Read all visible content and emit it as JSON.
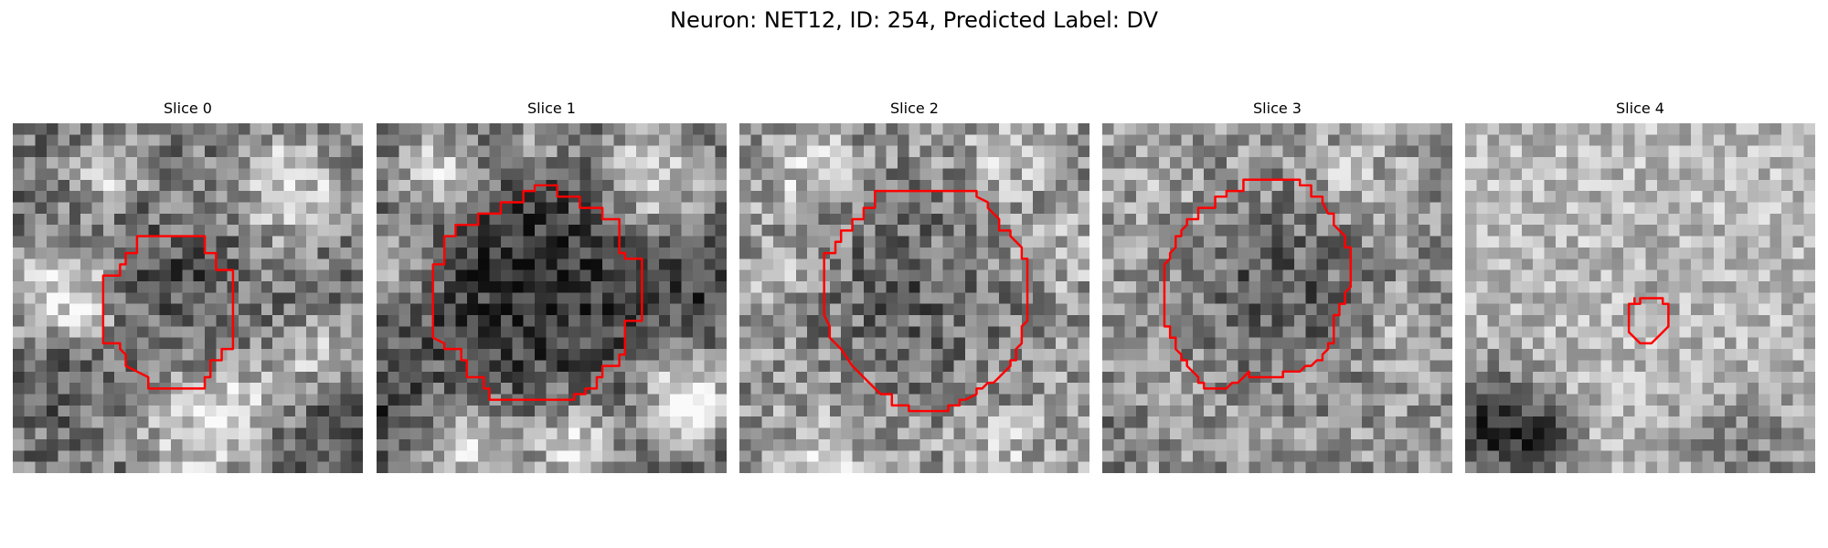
{
  "figure": {
    "title": "Neuron: NET12, ID: 254, Predicted Label: DV",
    "grid_size": 31,
    "contour_color": "#ff0000"
  },
  "panels": [
    {
      "title": "Slice 0",
      "seed": 11,
      "base": 118,
      "noise": 62,
      "blobs": [
        [
          4.5,
          15.5,
          4.5,
          110
        ],
        [
          24.5,
          5.5,
          5,
          95
        ],
        [
          8.5,
          4,
          3,
          90
        ],
        [
          16.5,
          27.5,
          5,
          100
        ],
        [
          26.5,
          20.5,
          3,
          70
        ],
        [
          20.5,
          24,
          3,
          60
        ]
      ],
      "darks": [
        [
          14.5,
          14.5,
          6,
          -35
        ],
        [
          3,
          22,
          4,
          -40
        ],
        [
          28,
          29,
          4,
          -30
        ]
      ],
      "contour": [
        [
          10,
          12.5
        ],
        [
          10,
          11.5
        ],
        [
          11,
          11.5
        ],
        [
          11,
          10
        ],
        [
          17,
          10
        ],
        [
          17,
          11.5
        ],
        [
          18,
          11.5
        ],
        [
          18,
          13
        ],
        [
          19.5,
          13
        ],
        [
          19.5,
          20
        ],
        [
          18.5,
          20
        ],
        [
          18.5,
          21
        ],
        [
          17.5,
          21
        ],
        [
          17.5,
          22.5
        ],
        [
          17,
          22.5
        ],
        [
          17,
          23.5
        ],
        [
          12,
          23.5
        ],
        [
          12,
          22.5
        ],
        [
          11,
          22
        ],
        [
          10,
          21.5
        ],
        [
          10,
          20.5
        ],
        [
          9.5,
          20
        ],
        [
          9.5,
          19.5
        ],
        [
          8,
          19.5
        ],
        [
          8,
          13.5
        ],
        [
          9.5,
          13.5
        ],
        [
          9.5,
          12.5
        ]
      ]
    },
    {
      "title": "Slice 1",
      "seed": 23,
      "base": 100,
      "noise": 55,
      "blobs": [
        [
          5.5,
          4.5,
          4,
          120
        ],
        [
          24.5,
          4.5,
          5,
          120
        ],
        [
          2,
          12.5,
          3,
          80
        ],
        [
          8,
          28.5,
          4,
          110
        ],
        [
          17.5,
          28.5,
          4,
          120
        ],
        [
          27.5,
          24.5,
          4,
          150
        ],
        [
          14.5,
          1,
          3,
          70
        ]
      ],
      "darks": [
        [
          14.5,
          14,
          10,
          -55
        ],
        [
          29,
          15,
          3,
          -30
        ],
        [
          1,
          25,
          3,
          -35
        ]
      ],
      "contour": [
        [
          8,
          9
        ],
        [
          9,
          9
        ],
        [
          9,
          8
        ],
        [
          11,
          8
        ],
        [
          11,
          7
        ],
        [
          13,
          7
        ],
        [
          13,
          6
        ],
        [
          14,
          6
        ],
        [
          14,
          5.5
        ],
        [
          16,
          5.5
        ],
        [
          16,
          6.5
        ],
        [
          18,
          6.5
        ],
        [
          18,
          7.5
        ],
        [
          20,
          7.5
        ],
        [
          20,
          8.5
        ],
        [
          21.5,
          8.5
        ],
        [
          21.5,
          11.5
        ],
        [
          22,
          11.5
        ],
        [
          22,
          12
        ],
        [
          23.5,
          12
        ],
        [
          23.5,
          17.5
        ],
        [
          22,
          17.5
        ],
        [
          22,
          20.5
        ],
        [
          21.5,
          20.5
        ],
        [
          21.5,
          21.5
        ],
        [
          20,
          21.5
        ],
        [
          20,
          22.5
        ],
        [
          19.5,
          22.5
        ],
        [
          19.5,
          23.5
        ],
        [
          18.5,
          23.5
        ],
        [
          18.5,
          24
        ],
        [
          17.5,
          24
        ],
        [
          17.5,
          24.5
        ],
        [
          10,
          24.5
        ],
        [
          10,
          23.5
        ],
        [
          9.5,
          23.5
        ],
        [
          9.5,
          22.5
        ],
        [
          8,
          22.5
        ],
        [
          8,
          21
        ],
        [
          7.5,
          21
        ],
        [
          7.5,
          20
        ],
        [
          6,
          20
        ],
        [
          6,
          19.5
        ],
        [
          5,
          19
        ],
        [
          5,
          12.5
        ],
        [
          6,
          12.5
        ],
        [
          6,
          10
        ],
        [
          7,
          10
        ],
        [
          7,
          9
        ]
      ]
    },
    {
      "title": "Slice 2",
      "seed": 37,
      "base": 150,
      "noise": 65,
      "blobs": [
        [
          6,
          4,
          4,
          50
        ],
        [
          24,
          3,
          4,
          40
        ],
        [
          3,
          14,
          3,
          40
        ],
        [
          28,
          12,
          3,
          45
        ],
        [
          8,
          29,
          4,
          50
        ],
        [
          23,
          29,
          4,
          40
        ]
      ],
      "darks": [
        [
          15.5,
          15,
          9,
          -50
        ]
      ],
      "contour": [
        [
          8.5,
          10.5
        ],
        [
          9,
          10.5
        ],
        [
          9,
          9.5
        ],
        [
          10,
          9.5
        ],
        [
          10,
          8.5
        ],
        [
          11,
          8.5
        ],
        [
          11,
          7.5
        ],
        [
          12,
          7.5
        ],
        [
          12,
          6
        ],
        [
          21,
          6
        ],
        [
          21,
          6.5
        ],
        [
          22,
          7
        ],
        [
          22,
          7.5
        ],
        [
          23,
          8.5
        ],
        [
          23,
          9.5
        ],
        [
          24,
          9.5
        ],
        [
          24,
          10
        ],
        [
          25,
          11
        ],
        [
          25,
          12
        ],
        [
          25.5,
          12
        ],
        [
          25.5,
          17.5
        ],
        [
          25,
          18
        ],
        [
          25,
          19.5
        ],
        [
          24.5,
          20
        ],
        [
          24.5,
          21
        ],
        [
          24,
          21
        ],
        [
          24,
          21.5
        ],
        [
          23.5,
          22
        ],
        [
          23,
          22.5
        ],
        [
          22.5,
          23
        ],
        [
          22,
          23
        ],
        [
          21.5,
          23.5
        ],
        [
          21,
          23.5
        ],
        [
          21,
          24
        ],
        [
          20,
          24.5
        ],
        [
          19.5,
          24.5
        ],
        [
          19.5,
          25
        ],
        [
          18.5,
          25
        ],
        [
          18.5,
          25.5
        ],
        [
          15,
          25.5
        ],
        [
          15,
          25
        ],
        [
          13.5,
          25
        ],
        [
          13.5,
          24
        ],
        [
          12.5,
          24
        ],
        [
          12,
          23.5
        ],
        [
          11,
          22.5
        ],
        [
          10,
          21.5
        ],
        [
          9,
          20
        ],
        [
          8,
          19
        ],
        [
          8,
          18
        ],
        [
          7.5,
          17
        ],
        [
          7.5,
          11.5
        ],
        [
          8.5,
          11.5
        ]
      ]
    },
    {
      "title": "Slice 3",
      "seed": 51,
      "base": 150,
      "noise": 60,
      "blobs": [
        [
          22,
          5,
          4,
          40
        ],
        [
          27,
          19,
          3,
          35
        ],
        [
          5,
          5,
          4,
          25
        ]
      ],
      "darks": [
        [
          15.5,
          14.5,
          8,
          -60
        ],
        [
          1,
          28,
          3,
          -30
        ]
      ],
      "contour": [
        [
          9.5,
          7.5
        ],
        [
          10,
          7.5
        ],
        [
          10,
          6.5
        ],
        [
          11,
          6.5
        ],
        [
          11,
          6
        ],
        [
          12.5,
          6
        ],
        [
          12.5,
          5
        ],
        [
          17.5,
          5
        ],
        [
          17.5,
          5.5
        ],
        [
          18.5,
          5.5
        ],
        [
          18.5,
          6.5
        ],
        [
          19.5,
          6.5
        ],
        [
          19.5,
          7
        ],
        [
          20,
          8
        ],
        [
          20.5,
          8
        ],
        [
          20.5,
          9
        ],
        [
          21.5,
          10
        ],
        [
          21.5,
          11
        ],
        [
          22,
          11
        ],
        [
          22,
          14.5
        ],
        [
          21.5,
          15
        ],
        [
          21.5,
          16
        ],
        [
          21,
          16
        ],
        [
          21,
          17
        ],
        [
          20.5,
          17
        ],
        [
          20.5,
          19.5
        ],
        [
          20,
          19.5
        ],
        [
          20,
          20
        ],
        [
          19.5,
          20.5
        ],
        [
          19.5,
          21
        ],
        [
          19,
          21
        ],
        [
          18.5,
          21.5
        ],
        [
          18,
          21.5
        ],
        [
          17.5,
          22
        ],
        [
          16,
          22
        ],
        [
          16,
          22.5
        ],
        [
          13,
          22.5
        ],
        [
          13,
          22
        ],
        [
          12.5,
          22.5
        ],
        [
          12,
          23
        ],
        [
          11.5,
          23
        ],
        [
          11,
          23.5
        ],
        [
          9,
          23.5
        ],
        [
          9,
          23
        ],
        [
          8.5,
          23
        ],
        [
          8.5,
          22.5
        ],
        [
          8,
          22
        ],
        [
          7.5,
          21.5
        ],
        [
          7.5,
          21
        ],
        [
          7,
          21
        ],
        [
          7,
          20.5
        ],
        [
          6.5,
          20
        ],
        [
          6.5,
          19
        ],
        [
          6,
          19
        ],
        [
          6,
          18
        ],
        [
          5.5,
          18
        ],
        [
          5.5,
          12.5
        ],
        [
          6,
          12
        ],
        [
          6,
          11.5
        ],
        [
          6.5,
          11
        ],
        [
          6.5,
          10
        ],
        [
          7,
          10
        ],
        [
          7,
          9.5
        ],
        [
          7.5,
          9
        ],
        [
          7.5,
          8.5
        ],
        [
          8.5,
          8.5
        ],
        [
          8.5,
          7.5
        ]
      ]
    },
    {
      "title": "Slice 4",
      "seed": 67,
      "base": 185,
      "noise": 48,
      "blobs": [],
      "darks": [
        [
          2,
          26.5,
          5,
          -140
        ],
        [
          7,
          28,
          3,
          -80
        ],
        [
          25,
          29.5,
          6,
          -60
        ],
        [
          16.5,
          16,
          2,
          -30
        ]
      ],
      "contour": [
        [
          15,
          15.5
        ],
        [
          15,
          16
        ],
        [
          15.5,
          16
        ],
        [
          15.5,
          15.5
        ],
        [
          17.5,
          15.5
        ],
        [
          17.5,
          16
        ],
        [
          18,
          16
        ],
        [
          18,
          18
        ],
        [
          17.5,
          18.5
        ],
        [
          17,
          19
        ],
        [
          16.5,
          19.5
        ],
        [
          15.5,
          19.5
        ],
        [
          15,
          19
        ],
        [
          14.5,
          18.5
        ],
        [
          14.5,
          16
        ],
        [
          15,
          16
        ]
      ]
    }
  ]
}
